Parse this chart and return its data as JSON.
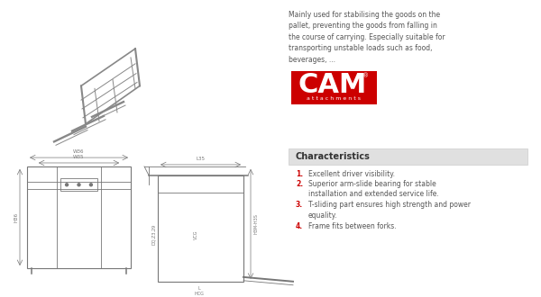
{
  "bg_color": "#ffffff",
  "description_text": "Mainly used for stabilising the goods on the\npallet, preventing the goods from falling in\nthe course of carrying. Especially suitable for\ntransporting unstable loads such as food,\nbeverages, ...",
  "cam_logo_text": "CAM",
  "cam_logo_subtext": "a t t a c h m e n t s",
  "cam_logo_bg": "#cc0000",
  "cam_logo_text_color": "#ffffff",
  "char_title": "Characteristics",
  "char_title_bg": "#e0e0e0",
  "char_items": [
    "Excellent driver visibility.",
    "Superior arm-slide bearing for stable\ninstallation and extended service life.",
    "T-sliding part ensures high strength and power\nequality.",
    "Frame fits between forks."
  ],
  "char_number_color": "#cc0000",
  "char_text_color": "#555555",
  "desc_text_color": "#555555",
  "diagram_color": "#888888"
}
